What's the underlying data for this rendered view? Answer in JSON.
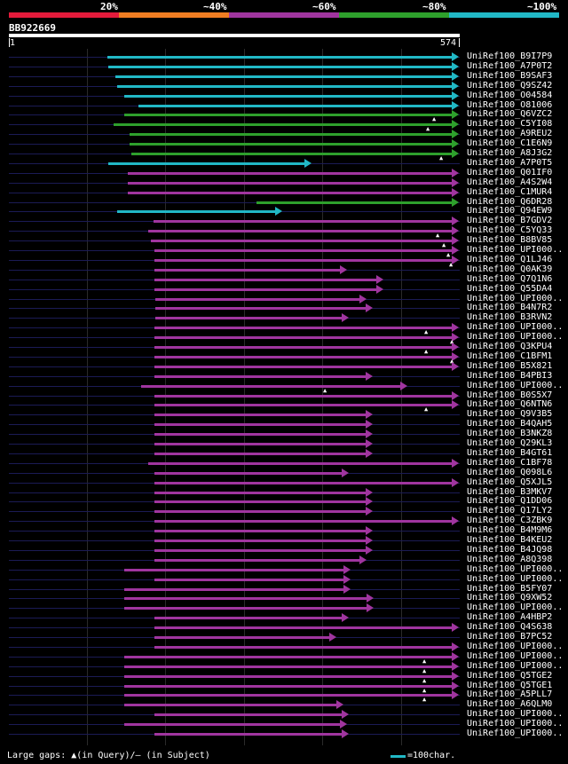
{
  "legend": {
    "labels": [
      "20%",
      "~40%",
      "~60%",
      "~80%",
      "~100%"
    ],
    "colors": [
      "#e31b3b",
      "#ef7d22",
      "#a0359f",
      "#2ea02c",
      "#21b8c6"
    ]
  },
  "query": {
    "name": "BB922669",
    "start": "1",
    "end": "574",
    "length": 574
  },
  "bottom": {
    "gaps_prefix": "Large gaps: ",
    "gap_query_icon": "▲",
    "gaps_text": "(in Query)/– (in Subject)",
    "scale_text": "=100char.",
    "scale_chars": 100
  },
  "hits": [
    {
      "label": "UniRef100_B9I7P9",
      "color": "#21b8c6",
      "start": 126,
      "end": 574
    },
    {
      "label": "UniRef100_A7P0T2",
      "color": "#21b8c6",
      "start": 128,
      "end": 574
    },
    {
      "label": "UniRef100_B9SAF3",
      "color": "#21b8c6",
      "start": 137,
      "end": 574
    },
    {
      "label": "UniRef100_Q9SZ42",
      "color": "#21b8c6",
      "start": 139,
      "end": 574
    },
    {
      "label": "UniRef100_O04584",
      "color": "#21b8c6",
      "start": 148,
      "end": 574
    },
    {
      "label": "UniRef100_O81006",
      "color": "#21b8c6",
      "start": 166,
      "end": 574
    },
    {
      "label": "UniRef100_Q6VZC2",
      "color": "#2ea02c",
      "start": 148,
      "end": 574,
      "gaps": [
        544
      ]
    },
    {
      "label": "UniRef100_C5YI08",
      "color": "#2ea02c",
      "start": 134,
      "end": 574,
      "gaps": [
        536
      ]
    },
    {
      "label": "UniRef100_A9REU2",
      "color": "#2ea02c",
      "start": 155,
      "end": 574
    },
    {
      "label": "UniRef100_C1E6N9",
      "color": "#2ea02c",
      "start": 155,
      "end": 574
    },
    {
      "label": "UniRef100_A8J3G2",
      "color": "#2ea02c",
      "start": 157,
      "end": 574,
      "gaps": [
        553
      ]
    },
    {
      "label": "UniRef100_A7P0T5",
      "color": "#21b8c6",
      "start": 128,
      "end": 386
    },
    {
      "label": "UniRef100_Q01IF0",
      "color": "#a0359f",
      "start": 153,
      "end": 574
    },
    {
      "label": "UniRef100_A4S2W4",
      "color": "#a0359f",
      "start": 153,
      "end": 574
    },
    {
      "label": "UniRef100_C1MUR4",
      "color": "#a0359f",
      "start": 153,
      "end": 574
    },
    {
      "label": "UniRef100_Q6DR28",
      "color": "#2ea02c",
      "start": 316,
      "end": 574
    },
    {
      "label": "UniRef100_Q94EW9",
      "color": "#21b8c6",
      "start": 139,
      "end": 349
    },
    {
      "label": "UniRef100_B7GDV2",
      "color": "#a0359f",
      "start": 185,
      "end": 574
    },
    {
      "label": "UniRef100_C5YQ33",
      "color": "#a0359f",
      "start": 178,
      "end": 574,
      "gaps": [
        548
      ]
    },
    {
      "label": "UniRef100_B8BV85",
      "color": "#a0359f",
      "start": 182,
      "end": 574,
      "gaps": [
        556
      ]
    },
    {
      "label": "UniRef100_UPI000..",
      "color": "#a0359f",
      "start": 186,
      "end": 574,
      "gaps": [
        562
      ]
    },
    {
      "label": "UniRef100_Q1LJ46",
      "color": "#a0359f",
      "start": 186,
      "end": 574,
      "gaps": [
        565
      ]
    },
    {
      "label": "UniRef100_Q0AK39",
      "color": "#a0359f",
      "start": 186,
      "end": 432
    },
    {
      "label": "UniRef100_Q7Q1N6",
      "color": "#a0359f",
      "start": 186,
      "end": 478
    },
    {
      "label": "UniRef100_Q55DA4",
      "color": "#a0359f",
      "start": 186,
      "end": 478
    },
    {
      "label": "UniRef100_UPI000..",
      "color": "#a0359f",
      "start": 188,
      "end": 457
    },
    {
      "label": "UniRef100_B4N7R2",
      "color": "#a0359f",
      "start": 188,
      "end": 464
    },
    {
      "label": "UniRef100_B3RVN2",
      "color": "#a0359f",
      "start": 188,
      "end": 434
    },
    {
      "label": "UniRef100_UPI000..",
      "color": "#a0359f",
      "start": 186,
      "end": 574,
      "gaps": [
        533
      ]
    },
    {
      "label": "UniRef100_UPI000..",
      "color": "#a0359f",
      "start": 186,
      "end": 574,
      "gaps": [
        566
      ]
    },
    {
      "label": "UniRef100_Q3KPU4",
      "color": "#a0359f",
      "start": 186,
      "end": 574,
      "gaps": [
        533
      ]
    },
    {
      "label": "UniRef100_C1BFM1",
      "color": "#a0359f",
      "start": 186,
      "end": 574,
      "gaps": [
        566
      ]
    },
    {
      "label": "UniRef100_B5X821",
      "color": "#a0359f",
      "start": 186,
      "end": 574
    },
    {
      "label": "UniRef100_B4PBI3",
      "color": "#a0359f",
      "start": 186,
      "end": 464
    },
    {
      "label": "UniRef100_UPI000..",
      "color": "#a0359f",
      "start": 169,
      "end": 508,
      "gaps": [
        405
      ]
    },
    {
      "label": "UniRef100_B0S5X7",
      "color": "#a0359f",
      "start": 186,
      "end": 574
    },
    {
      "label": "UniRef100_Q6NTN6",
      "color": "#a0359f",
      "start": 186,
      "end": 574,
      "gaps": [
        533
      ]
    },
    {
      "label": "UniRef100_Q9V3B5",
      "color": "#a0359f",
      "start": 186,
      "end": 464
    },
    {
      "label": "UniRef100_B4QAH5",
      "color": "#a0359f",
      "start": 186,
      "end": 464
    },
    {
      "label": "UniRef100_B3NKZ8",
      "color": "#a0359f",
      "start": 186,
      "end": 464
    },
    {
      "label": "UniRef100_Q29KL3",
      "color": "#a0359f",
      "start": 186,
      "end": 464
    },
    {
      "label": "UniRef100_B4GT61",
      "color": "#a0359f",
      "start": 186,
      "end": 464
    },
    {
      "label": "UniRef100_C1BF78",
      "color": "#a0359f",
      "start": 178,
      "end": 574
    },
    {
      "label": "UniRef100_Q098L6",
      "color": "#a0359f",
      "start": 186,
      "end": 434
    },
    {
      "label": "UniRef100_Q5XJL5",
      "color": "#a0359f",
      "start": 186,
      "end": 574
    },
    {
      "label": "UniRef100_B3MKV7",
      "color": "#a0359f",
      "start": 186,
      "end": 464
    },
    {
      "label": "UniRef100_Q1DD06",
      "color": "#a0359f",
      "start": 186,
      "end": 464
    },
    {
      "label": "UniRef100_Q17LY2",
      "color": "#a0359f",
      "start": 186,
      "end": 464
    },
    {
      "label": "UniRef100_C3ZBK9",
      "color": "#a0359f",
      "start": 186,
      "end": 574
    },
    {
      "label": "UniRef100_B4M9M6",
      "color": "#a0359f",
      "start": 186,
      "end": 464
    },
    {
      "label": "UniRef100_B4KEU2",
      "color": "#a0359f",
      "start": 186,
      "end": 464
    },
    {
      "label": "UniRef100_B4JQ98",
      "color": "#a0359f",
      "start": 186,
      "end": 464
    },
    {
      "label": "UniRef100_A8Q398",
      "color": "#a0359f",
      "start": 186,
      "end": 457
    },
    {
      "label": "UniRef100_UPI000..",
      "color": "#a0359f",
      "start": 148,
      "end": 436
    },
    {
      "label": "UniRef100_UPI000..",
      "color": "#a0359f",
      "start": 186,
      "end": 436
    },
    {
      "label": "UniRef100_B5FY07",
      "color": "#a0359f",
      "start": 148,
      "end": 436
    },
    {
      "label": "UniRef100_Q9XW52",
      "color": "#a0359f",
      "start": 148,
      "end": 466
    },
    {
      "label": "UniRef100_UPI000..",
      "color": "#a0359f",
      "start": 148,
      "end": 466
    },
    {
      "label": "UniRef100_A4HBP2",
      "color": "#a0359f",
      "start": 186,
      "end": 434
    },
    {
      "label": "UniRef100_Q4S638",
      "color": "#a0359f",
      "start": 186,
      "end": 574
    },
    {
      "label": "UniRef100_B7PC52",
      "color": "#a0359f",
      "start": 186,
      "end": 418
    },
    {
      "label": "UniRef100_UPI000..",
      "color": "#a0359f",
      "start": 186,
      "end": 574
    },
    {
      "label": "UniRef100_UPI000..",
      "color": "#a0359f",
      "start": 148,
      "end": 574,
      "gaps": [
        531
      ]
    },
    {
      "label": "UniRef100_UPI000..",
      "color": "#a0359f",
      "start": 148,
      "end": 574,
      "gaps": [
        531
      ]
    },
    {
      "label": "UniRef100_Q5TGE2",
      "color": "#a0359f",
      "start": 148,
      "end": 574,
      "gaps": [
        531
      ]
    },
    {
      "label": "UniRef100_Q5TGE1",
      "color": "#a0359f",
      "start": 148,
      "end": 574,
      "gaps": [
        531
      ]
    },
    {
      "label": "UniRef100_A5PLL7",
      "color": "#a0359f",
      "start": 148,
      "end": 574,
      "gaps": [
        531
      ]
    },
    {
      "label": "UniRef100_A6QLM0",
      "color": "#a0359f",
      "start": 148,
      "end": 427
    },
    {
      "label": "UniRef100_UPI000..",
      "color": "#a0359f",
      "start": 186,
      "end": 434
    },
    {
      "label": "UniRef100_UPI000..",
      "color": "#a0359f",
      "start": 148,
      "end": 432
    },
    {
      "label": "UniRef100_UPI000..",
      "color": "#a0359f",
      "start": 186,
      "end": 434
    }
  ]
}
